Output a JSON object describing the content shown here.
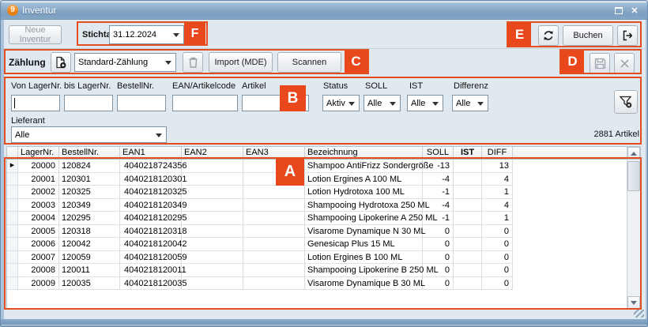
{
  "titlebar": {
    "badge": "9",
    "title": "Inventur"
  },
  "toolbar": {
    "neue_inventur": "Neue Inventur",
    "stichtag_label": "Stichtag:",
    "stichtag_value": "31.12.2024",
    "buchen": "Buchen"
  },
  "zaehlung": {
    "label": "Zählung",
    "combo_value": "Standard-Zählung",
    "import_mde": "Import (MDE)",
    "scannen": "Scannen"
  },
  "filters": {
    "von_lagernr_label": "Von LagerNr.",
    "bis_lagernr_label": "bis LagerNr.",
    "bestellnr_label": "BestellNr.",
    "ean_label": "EAN/Artikelcode",
    "artikel_label": "Artikel",
    "status_label": "Status",
    "status_value": "Aktiv",
    "soll_label": "SOLL",
    "soll_value": "Alle",
    "ist_label": "IST",
    "ist_value": "Alle",
    "differenz_label": "Differenz",
    "differenz_value": "Alle",
    "lieferant_label": "Lieferant",
    "lieferant_value": "Alle",
    "artikel_count": "2881 Artikel"
  },
  "table": {
    "columns": [
      {
        "key": "sel",
        "label": ""
      },
      {
        "key": "lager",
        "label": "LagerNr."
      },
      {
        "key": "bestell",
        "label": "BestellNr."
      },
      {
        "key": "ean1",
        "label": "EAN1"
      },
      {
        "key": "ean2",
        "label": "EAN2"
      },
      {
        "key": "ean3",
        "label": "EAN3"
      },
      {
        "key": "bez",
        "label": "Bezeichnung"
      },
      {
        "key": "soll",
        "label": "SOLL"
      },
      {
        "key": "ist",
        "label": "IST"
      },
      {
        "key": "diff",
        "label": "DIFF"
      },
      {
        "key": "fill",
        "label": ""
      }
    ],
    "rows": [
      {
        "sel": "▶",
        "lager": "20000",
        "bestell": "120824",
        "ean1": "4040218724356",
        "ean2": "",
        "ean3": "",
        "bez": "Shampoo AntiFrizz Sondergröße",
        "soll": "-13",
        "ist": "",
        "diff": "13"
      },
      {
        "sel": "",
        "lager": "20001",
        "bestell": "120301",
        "ean1": "4040218120301",
        "ean2": "",
        "ean3": "",
        "bez": "Lotion Ergines A 100 ML",
        "soll": "-4",
        "ist": "",
        "diff": "4"
      },
      {
        "sel": "",
        "lager": "20002",
        "bestell": "120325",
        "ean1": "4040218120325",
        "ean2": "",
        "ean3": "",
        "bez": "Lotion Hydrotoxa 100 ML",
        "soll": "-1",
        "ist": "",
        "diff": "1"
      },
      {
        "sel": "",
        "lager": "20003",
        "bestell": "120349",
        "ean1": "4040218120349",
        "ean2": "",
        "ean3": "",
        "bez": "Shampooing Hydrotoxa 250 ML",
        "soll": "-4",
        "ist": "",
        "diff": "4"
      },
      {
        "sel": "",
        "lager": "20004",
        "bestell": "120295",
        "ean1": "4040218120295",
        "ean2": "",
        "ean3": "",
        "bez": "Shampooing Lipokerine A 250 ML",
        "soll": "-1",
        "ist": "",
        "diff": "1"
      },
      {
        "sel": "",
        "lager": "20005",
        "bestell": "120318",
        "ean1": "4040218120318",
        "ean2": "",
        "ean3": "",
        "bez": "Visarome Dynamique N 30 ML",
        "soll": "0",
        "ist": "",
        "diff": "0"
      },
      {
        "sel": "",
        "lager": "20006",
        "bestell": "120042",
        "ean1": "4040218120042",
        "ean2": "",
        "ean3": "",
        "bez": "Genesicap Plus 15 ML",
        "soll": "0",
        "ist": "",
        "diff": "0"
      },
      {
        "sel": "",
        "lager": "20007",
        "bestell": "120059",
        "ean1": "4040218120059",
        "ean2": "",
        "ean3": "",
        "bez": "Lotion Ergines B 100 ML",
        "soll": "0",
        "ist": "",
        "diff": "0"
      },
      {
        "sel": "",
        "lager": "20008",
        "bestell": "120011",
        "ean1": "4040218120011",
        "ean2": "",
        "ean3": "",
        "bez": "Shampooing Lipokerine B 250 ML",
        "soll": "0",
        "ist": "",
        "diff": "0"
      },
      {
        "sel": "",
        "lager": "20009",
        "bestell": "120035",
        "ean1": "4040218120035",
        "ean2": "",
        "ean3": "",
        "bez": "Visarome Dynamique B 30 ML",
        "soll": "0",
        "ist": "",
        "diff": "0"
      }
    ]
  },
  "annotations": {
    "a": "A",
    "b": "B",
    "c": "C",
    "d": "D",
    "e": "E",
    "f": "F"
  },
  "colors": {
    "annotation": "#e8481b",
    "titlebar": "#84a6c6",
    "badge_orange": "#ee8418"
  }
}
